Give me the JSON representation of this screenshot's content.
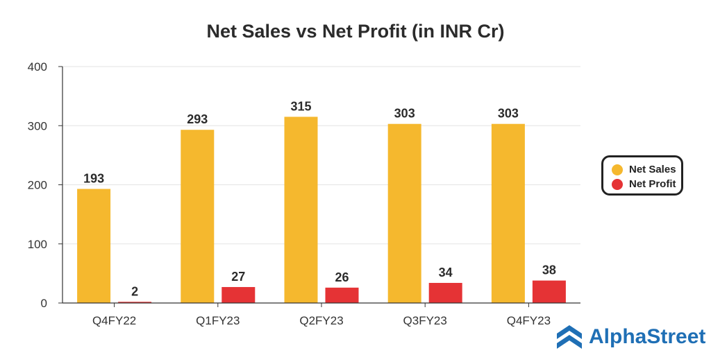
{
  "chart_data": {
    "type": "bar",
    "title": "Net Sales vs Net Profit (in INR Cr)",
    "xlabel": "",
    "ylabel": "",
    "categories": [
      "Q4FY22",
      "Q1FY23",
      "Q2FY23",
      "Q3FY23",
      "Q4FY23"
    ],
    "series": [
      {
        "name": "Net Sales",
        "values": [
          193,
          293,
          315,
          303,
          303
        ],
        "color": "#F5B82E"
      },
      {
        "name": "Net Profit",
        "values": [
          2,
          27,
          26,
          34,
          38
        ],
        "color": "#E53335"
      }
    ],
    "ylim": [
      0,
      400
    ],
    "yticks": [
      0,
      100,
      200,
      300,
      400
    ],
    "grid": true,
    "legend_position": "right"
  },
  "brand": {
    "name": "AlphaStreet",
    "icon": "alphastreet-logo-icon",
    "color": "#1F6FB5"
  }
}
